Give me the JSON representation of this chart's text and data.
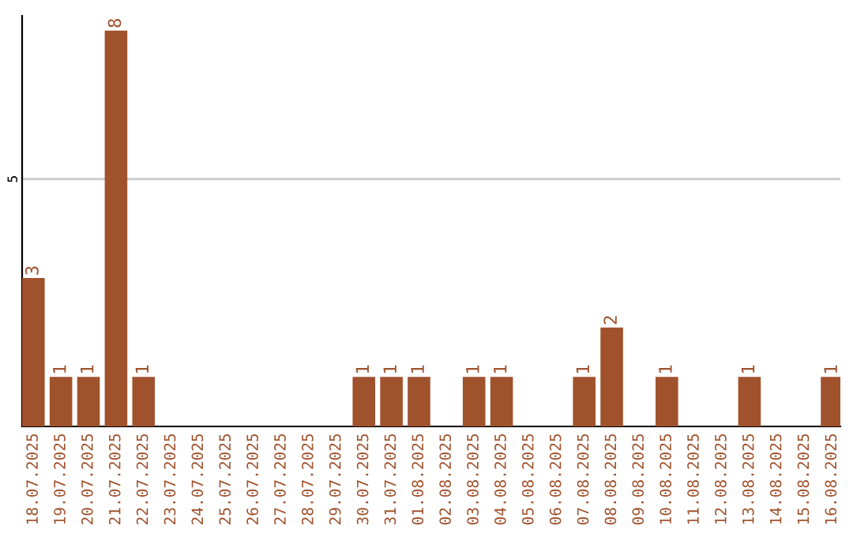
{
  "chart_data": {
    "type": "bar",
    "categories": [
      "18.07.2025",
      "19.07.2025",
      "20.07.2025",
      "21.07.2025",
      "22.07.2025",
      "23.07.2025",
      "24.07.2025",
      "25.07.2025",
      "26.07.2025",
      "27.07.2025",
      "28.07.2025",
      "29.07.2025",
      "30.07.2025",
      "31.07.2025",
      "01.08.2025",
      "02.08.2025",
      "03.08.2025",
      "04.08.2025",
      "05.08.2025",
      "06.08.2025",
      "07.08.2025",
      "08.08.2025",
      "09.08.2025",
      "10.08.2025",
      "11.08.2025",
      "12.08.2025",
      "13.08.2025",
      "14.08.2025",
      "15.08.2025",
      "16.08.2025"
    ],
    "values": [
      3,
      1,
      1,
      8,
      1,
      0,
      0,
      0,
      0,
      0,
      0,
      0,
      1,
      1,
      1,
      0,
      1,
      1,
      0,
      0,
      1,
      2,
      0,
      1,
      0,
      0,
      1,
      0,
      0,
      1
    ],
    "value_labels": [
      "3",
      "1",
      "1",
      "8",
      "1",
      null,
      null,
      null,
      null,
      null,
      null,
      null,
      "1",
      "1",
      "1",
      null,
      "1",
      "1",
      null,
      null,
      "1",
      "2",
      null,
      "1",
      null,
      null,
      "1",
      null,
      null,
      "1"
    ],
    "color": "#a0522d",
    "ylim": [
      0,
      8.3
    ],
    "yticks": [
      5
    ],
    "grid": "y"
  }
}
